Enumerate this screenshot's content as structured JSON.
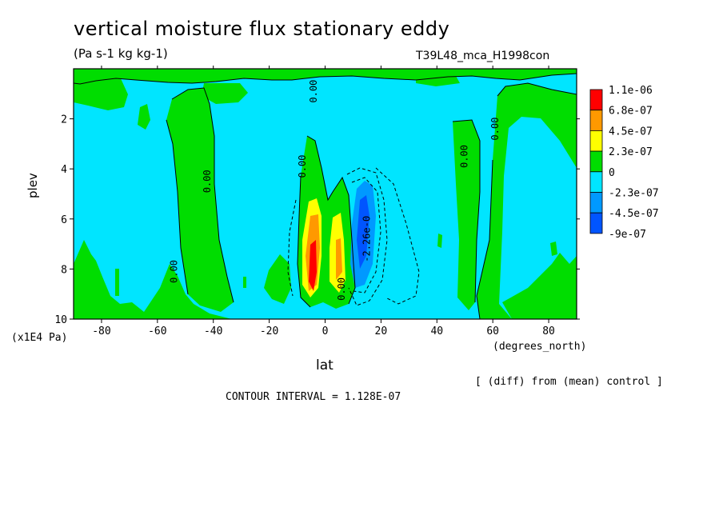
{
  "header": {
    "title": "vertical moisture flux stationary eddy",
    "units": "(Pa s-1 kg kg-1)",
    "run_id": "T39L48_mca_H1998con"
  },
  "footer": {
    "diff_note": "[ (diff) from (mean) control ]",
    "contour_interval": "CONTOUR INTERVAL = 1.128E-07"
  },
  "colors": {
    "c1": "#ff0000",
    "c2": "#ff9900",
    "c3": "#ffff00",
    "c4": "#00dd00",
    "c5": "#00e5ff",
    "c6": "#0099ff",
    "c7": "#0055ff",
    "line": "#000000"
  },
  "chart_data": {
    "type": "heatmap",
    "title": "vertical moisture flux stationary eddy",
    "xlabel": "lat",
    "ylabel": "plev",
    "x_unit": "(degrees_north)",
    "y_unit": "(x1E4 Pa)",
    "xlim": [
      -90,
      90
    ],
    "ylim": [
      10,
      0
    ],
    "xticks": [
      -80,
      -60,
      -40,
      -20,
      0,
      20,
      40,
      60,
      80
    ],
    "yticks": [
      2,
      4,
      6,
      8,
      10
    ],
    "xtick_labels": [
      "-80",
      "-60",
      "-40",
      "-20",
      "0",
      "20",
      "40",
      "60",
      "80"
    ],
    "ytick_labels": [
      "2",
      "4",
      "6",
      "8",
      "10"
    ],
    "legend": {
      "position": "right",
      "levels": [
        "1.1e-06",
        "6.8e-07",
        "4.5e-07",
        "2.3e-07",
        "0",
        "-2.3e-07",
        "-4.5e-07",
        "-9e-07"
      ],
      "colors": [
        "#ff0000",
        "#ff9900",
        "#ffff00",
        "#00dd00",
        "#00e5ff",
        "#0099ff",
        "#0055ff"
      ]
    },
    "contour_labels": [
      {
        "text": "0.00",
        "lat": -3,
        "plev": 0.9
      },
      {
        "text": "0.00",
        "lat": -41,
        "plev": 4.5
      },
      {
        "text": "0.00",
        "lat": -53,
        "plev": 8.1
      },
      {
        "text": "0.00",
        "lat": -7,
        "plev": 3.9
      },
      {
        "text": "0.00",
        "lat": 7,
        "plev": 8.8
      },
      {
        "text": "-2.26e-0",
        "lat": 16,
        "plev": 6.8
      },
      {
        "text": "0.00",
        "lat": 51,
        "plev": 3.5
      },
      {
        "text": "0.00",
        "lat": 62,
        "plev": 2.4
      }
    ],
    "features": [
      {
        "name": "positive-core",
        "lat": -4,
        "plev": 7.3,
        "max": "1.1e-06"
      },
      {
        "name": "positive-secondary",
        "lat": 5,
        "plev": 7.5,
        "max": "4.5e-07"
      },
      {
        "name": "negative-core",
        "lat": 14,
        "plev": 6.3,
        "min": "-4.5e-07"
      }
    ]
  }
}
